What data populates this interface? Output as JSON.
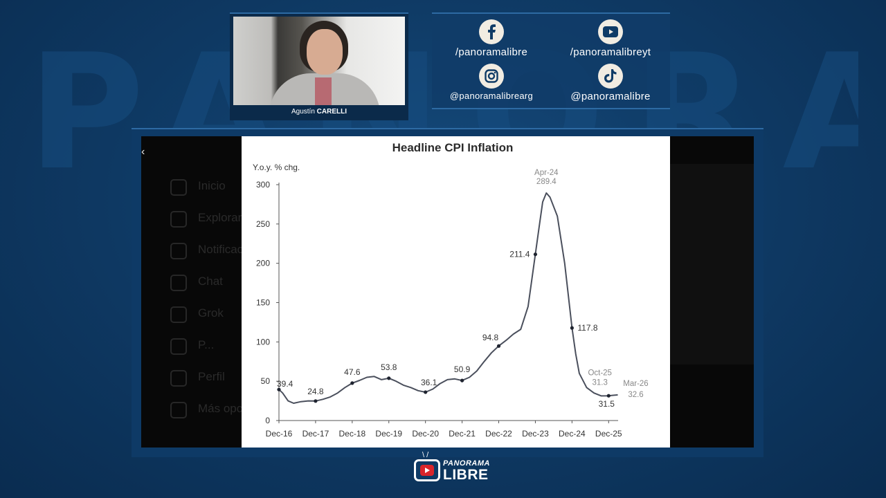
{
  "background": {
    "watermark": "PANORAMA"
  },
  "presenter": {
    "first_name": "Agustín",
    "last_name": "CARELLI"
  },
  "social": [
    {
      "icon": "facebook-icon",
      "handle": "/panoramalibre"
    },
    {
      "icon": "youtube-icon",
      "handle": "/panoramalibreyt"
    },
    {
      "icon": "instagram-icon",
      "handle": "@panoramalibrearg"
    },
    {
      "icon": "tiktok-icon",
      "handle": "@panoramalibre"
    }
  ],
  "screen": {
    "close_glyph": "‹",
    "ghost_menu": [
      "Inicio",
      "Explorar",
      "Notificaciones",
      "Chat",
      "Grok",
      "P...",
      "Perfil",
      "Más opciones"
    ]
  },
  "chart_data": {
    "type": "line",
    "title": "Headline CPI Inflation",
    "ylabel": "Y.o.y. % chg.",
    "xlabel": "",
    "x_ticks": [
      "Dec-16",
      "Dec-17",
      "Dec-18",
      "Dec-19",
      "Dec-20",
      "Dec-21",
      "Dec-22",
      "Dec-23",
      "Dec-24",
      "Dec-25"
    ],
    "y_ticks": [
      0,
      50,
      100,
      150,
      200,
      250,
      300
    ],
    "ylim": [
      0,
      300
    ],
    "xlim": [
      0,
      9.3
    ],
    "series": [
      {
        "color": "#4a4f5c",
        "points": [
          [
            0.0,
            39.4
          ],
          [
            0.1,
            35
          ],
          [
            0.25,
            25
          ],
          [
            0.4,
            22
          ],
          [
            0.6,
            24
          ],
          [
            0.8,
            25
          ],
          [
            1.0,
            24.8
          ],
          [
            1.2,
            27
          ],
          [
            1.4,
            30
          ],
          [
            1.6,
            35
          ],
          [
            1.8,
            42
          ],
          [
            2.0,
            47.6
          ],
          [
            2.2,
            51
          ],
          [
            2.4,
            55
          ],
          [
            2.6,
            56
          ],
          [
            2.8,
            52
          ],
          [
            3.0,
            53.8
          ],
          [
            3.2,
            50
          ],
          [
            3.4,
            45
          ],
          [
            3.6,
            42
          ],
          [
            3.8,
            38
          ],
          [
            4.0,
            36.1
          ],
          [
            4.2,
            40
          ],
          [
            4.4,
            47
          ],
          [
            4.6,
            52
          ],
          [
            4.8,
            53
          ],
          [
            5.0,
            50.9
          ],
          [
            5.2,
            55
          ],
          [
            5.4,
            63
          ],
          [
            5.6,
            75
          ],
          [
            5.8,
            86
          ],
          [
            6.0,
            94.8
          ],
          [
            6.2,
            102
          ],
          [
            6.4,
            110
          ],
          [
            6.6,
            116
          ],
          [
            6.8,
            145
          ],
          [
            7.0,
            211.4
          ],
          [
            7.1,
            245
          ],
          [
            7.2,
            278
          ],
          [
            7.3,
            289.4
          ],
          [
            7.4,
            284
          ],
          [
            7.6,
            260
          ],
          [
            7.8,
            200
          ],
          [
            8.0,
            117.8
          ],
          [
            8.1,
            85
          ],
          [
            8.2,
            60
          ],
          [
            8.4,
            42
          ],
          [
            8.6,
            35
          ],
          [
            8.8,
            31.3
          ],
          [
            9.0,
            31.5
          ],
          [
            9.1,
            32
          ],
          [
            9.25,
            32.6
          ]
        ]
      }
    ],
    "labeled_points": [
      {
        "x": 0.0,
        "y": 39.4,
        "label": "39.4"
      },
      {
        "x": 1.0,
        "y": 24.8,
        "label": "24.8"
      },
      {
        "x": 2.0,
        "y": 47.6,
        "label": "47.6"
      },
      {
        "x": 3.0,
        "y": 53.8,
        "label": "53.8"
      },
      {
        "x": 4.0,
        "y": 36.1,
        "label": "36.1"
      },
      {
        "x": 5.0,
        "y": 50.9,
        "label": "50.9"
      },
      {
        "x": 6.0,
        "y": 94.8,
        "label": "94.8"
      },
      {
        "x": 7.0,
        "y": 211.4,
        "label": "211.4"
      },
      {
        "x": 8.0,
        "y": 117.8,
        "label": "117.8"
      },
      {
        "x": 9.0,
        "y": 31.5,
        "label": "31.5"
      }
    ],
    "annotations": [
      {
        "x": 7.3,
        "y": 289.4,
        "label": "Apr-24",
        "value": "289.4"
      },
      {
        "x": 8.8,
        "y": 31.3,
        "label": "Oct-25",
        "value": "31.3"
      },
      {
        "x": 9.25,
        "y": 32.6,
        "label": "Mar-26",
        "value": "32.6"
      }
    ],
    "grid": false
  },
  "logo": {
    "top": "PANORAMA",
    "bottom": "LIBRE"
  }
}
